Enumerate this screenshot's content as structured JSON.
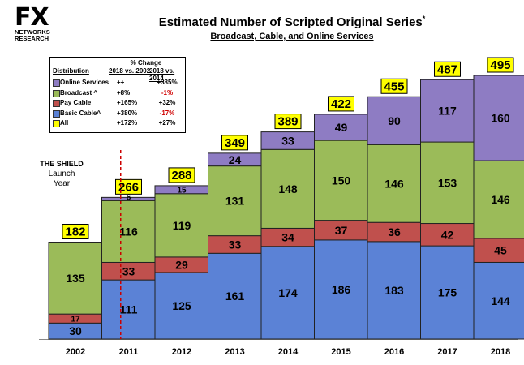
{
  "logo": {
    "brand": "FX",
    "line1": "NETWORKS",
    "line2": "RESEARCH"
  },
  "header": {
    "title": "Estimated Number of Scripted Original Series",
    "title_mark": "*",
    "subtitle": "Broadcast, Cable, and Online Services"
  },
  "legend": {
    "heading": "% Change",
    "col_distribution": "Distribution",
    "col_a": "2018 vs. 2002",
    "col_b": "2018 vs. 2014",
    "rows": [
      {
        "label": "Online Services",
        "a": "++",
        "b": "+385%",
        "color": "#8e7cc3",
        "b_color": "#000000"
      },
      {
        "label": "Broadcast ^",
        "a": "+8%",
        "b": "-1%",
        "color": "#9bbb59",
        "b_color": "#d00000"
      },
      {
        "label": "Pay Cable",
        "a": "+165%",
        "b": "+32%",
        "color": "#c0504d",
        "b_color": "#000000"
      },
      {
        "label": "Basic Cable^",
        "a": "+380%",
        "b": "-17%",
        "color": "#5b82d6",
        "b_color": "#d00000"
      },
      {
        "label": "All",
        "a": "+172%",
        "b": "+27%",
        "color": "#ffff00",
        "b_color": "#000000"
      }
    ]
  },
  "annotation": {
    "line1": "THE SHIELD",
    "line2": "Launch",
    "line3": "Year"
  },
  "chart_data": {
    "type": "bar",
    "stacked": true,
    "categories": [
      "2002",
      "2011",
      "2012",
      "2013",
      "2014",
      "2015",
      "2016",
      "2017",
      "2018"
    ],
    "series": [
      {
        "name": "Basic Cable",
        "color": "#5b82d6",
        "values": [
          30,
          111,
          125,
          161,
          174,
          186,
          183,
          175,
          144
        ]
      },
      {
        "name": "Pay Cable",
        "color": "#c0504d",
        "values": [
          17,
          33,
          29,
          33,
          34,
          37,
          36,
          42,
          45
        ]
      },
      {
        "name": "Broadcast",
        "color": "#9bbb59",
        "values": [
          135,
          116,
          119,
          131,
          148,
          150,
          146,
          153,
          146
        ]
      },
      {
        "name": "Online Services",
        "color": "#8e7cc3",
        "values": [
          0,
          6,
          15,
          24,
          33,
          49,
          90,
          117,
          160
        ]
      }
    ],
    "totals": [
      182,
      266,
      288,
      349,
      389,
      422,
      455,
      487,
      495
    ],
    "ylim": [
      0,
      495
    ],
    "total_label_color": "#ffff00",
    "reference_line_color": "#cc0000"
  }
}
